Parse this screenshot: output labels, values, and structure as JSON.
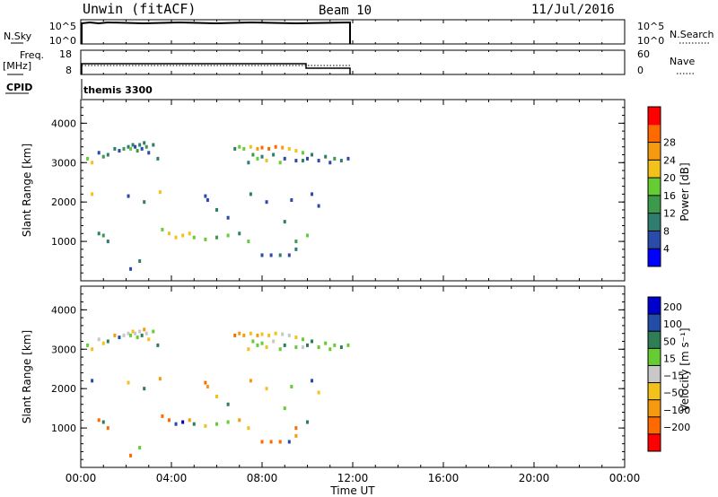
{
  "header": {
    "title": "Unwin (fitACF)",
    "beam": "Beam 10",
    "date": "11/Jul/2016"
  },
  "nsky_panel": {
    "label": "N.Sky",
    "tick_top": "10^5",
    "tick_bottom": "10^0",
    "right_tick_top": "10^5",
    "right_tick_bottom": "10^0",
    "right_label": "N.Search"
  },
  "freq_panel": {
    "label_line1": "Freq.",
    "label_line2": "[MHz]",
    "tick_top": "18",
    "tick_bottom": "8",
    "right_tick_top": "60",
    "right_tick_bottom": "0",
    "right_label": "Nave"
  },
  "cpid_panel": {
    "label": "CPID",
    "text": "themis 3300"
  },
  "x_axis": {
    "title": "Time UT",
    "ticks": [
      "00:00",
      "04:00",
      "08:00",
      "12:00",
      "16:00",
      "20:00",
      "00:00"
    ],
    "range_hours": [
      0,
      24
    ]
  },
  "power_panel": {
    "ylabel": "Slant Range [km]",
    "yticks": [
      "1000",
      "2000",
      "3000",
      "4000"
    ],
    "colorbar_label": "Power [dB]",
    "colorbar_ticks": [
      "4",
      "8",
      "12",
      "16",
      "20",
      "24",
      "28"
    ]
  },
  "velocity_panel": {
    "ylabel": "Slant Range [km]",
    "yticks": [
      "1000",
      "2000",
      "3000",
      "4000"
    ],
    "colorbar_label": "Velocity [m s⁻¹]",
    "colorbar_ticks": [
      "200",
      "100",
      "50",
      "15",
      "−15",
      "−50",
      "−100",
      "−200"
    ]
  },
  "colors": {
    "power_scale": [
      "#0000ff",
      "#2a4ba8",
      "#2e7d6e",
      "#3c9a4a",
      "#66cc33",
      "#f2c11a",
      "#f59a10",
      "#ff6a00",
      "#ff0000"
    ],
    "velocity_scale": [
      "#0000cc",
      "#234ba8",
      "#2e7d55",
      "#66cc33",
      "#c8c8c8",
      "#f2c11a",
      "#f59a10",
      "#ff6a00",
      "#ff0000"
    ]
  },
  "chart_data": [
    {
      "type": "line",
      "title": "N.Sky / N.Search",
      "x_hours": [
        0.0,
        12.0
      ],
      "series": [
        {
          "name": "N.Sky",
          "values_log10": [
            5,
            5
          ]
        },
        {
          "name": "N.Search",
          "values_log10": [
            5,
            5
          ]
        }
      ],
      "xlim": [
        0,
        24
      ]
    },
    {
      "type": "line",
      "title": "Freq. / Nave",
      "x_hours": [
        0.0,
        10.0,
        10.0,
        12.0
      ],
      "series": [
        {
          "name": "Freq. [MHz]",
          "values": [
            10.8,
            10.8,
            9.7,
            9.7
          ]
        },
        {
          "name": "Nave",
          "values": [
            30,
            30,
            30,
            30
          ]
        }
      ],
      "xlim": [
        0,
        24
      ]
    },
    {
      "type": "scatter",
      "title": "Power [dB]",
      "xlabel": "Time UT",
      "ylabel": "Slant Range [km]",
      "xlim": [
        0,
        24
      ],
      "ylim": [
        0,
        4600
      ],
      "points": [
        [
          0.3,
          3100,
          18
        ],
        [
          0.5,
          3000,
          20
        ],
        [
          0.8,
          3250,
          8
        ],
        [
          1.0,
          3150,
          14
        ],
        [
          1.2,
          3200,
          10
        ],
        [
          1.5,
          3350,
          12
        ],
        [
          1.7,
          3300,
          6
        ],
        [
          1.9,
          3350,
          14
        ],
        [
          2.1,
          3400,
          10
        ],
        [
          2.2,
          3350,
          16
        ],
        [
          2.3,
          3450,
          12
        ],
        [
          2.4,
          3400,
          8
        ],
        [
          2.5,
          3300,
          14
        ],
        [
          2.6,
          3450,
          10
        ],
        [
          2.7,
          3350,
          6
        ],
        [
          2.8,
          3500,
          12
        ],
        [
          2.9,
          3400,
          14
        ],
        [
          3.0,
          3250,
          8
        ],
        [
          3.2,
          3450,
          10
        ],
        [
          3.4,
          3100,
          12
        ],
        [
          0.5,
          2200,
          20
        ],
        [
          2.1,
          2150,
          8
        ],
        [
          2.8,
          2000,
          10
        ],
        [
          3.5,
          2250,
          20
        ],
        [
          3.6,
          1300,
          18
        ],
        [
          3.9,
          1200,
          20
        ],
        [
          4.2,
          1100,
          20
        ],
        [
          4.5,
          1150,
          22
        ],
        [
          4.8,
          1200,
          20
        ],
        [
          5.0,
          1100,
          18
        ],
        [
          5.5,
          1050,
          16
        ],
        [
          6.0,
          1100,
          14
        ],
        [
          6.5,
          1150,
          16
        ],
        [
          7.0,
          1200,
          12
        ],
        [
          7.4,
          1000,
          18
        ],
        [
          0.8,
          1200,
          10
        ],
        [
          1.0,
          1150,
          14
        ],
        [
          1.2,
          1000,
          12
        ],
        [
          2.2,
          300,
          8
        ],
        [
          2.6,
          500,
          12
        ],
        [
          5.5,
          2150,
          8
        ],
        [
          5.6,
          2050,
          6
        ],
        [
          6.0,
          1800,
          10
        ],
        [
          6.5,
          1600,
          8
        ],
        [
          7.5,
          2200,
          10
        ],
        [
          8.2,
          2000,
          8
        ],
        [
          9.3,
          2050,
          6
        ],
        [
          10.2,
          2200,
          8
        ],
        [
          10.5,
          1900,
          6
        ],
        [
          9.0,
          1500,
          10
        ],
        [
          9.5,
          1000,
          14
        ],
        [
          10.0,
          1150,
          16
        ],
        [
          8.0,
          650,
          6
        ],
        [
          8.4,
          650,
          8
        ],
        [
          8.8,
          650,
          10
        ],
        [
          9.2,
          650,
          6
        ],
        [
          9.5,
          800,
          12
        ],
        [
          6.8,
          3350,
          12
        ],
        [
          7.0,
          3400,
          16
        ],
        [
          7.2,
          3350,
          18
        ],
        [
          7.5,
          3400,
          22
        ],
        [
          7.8,
          3350,
          24
        ],
        [
          8.0,
          3380,
          26
        ],
        [
          8.3,
          3350,
          28
        ],
        [
          8.6,
          3400,
          26
        ],
        [
          8.9,
          3380,
          24
        ],
        [
          9.2,
          3350,
          22
        ],
        [
          9.5,
          3300,
          20
        ],
        [
          9.8,
          3250,
          18
        ],
        [
          7.6,
          3200,
          14
        ],
        [
          8.0,
          3150,
          12
        ],
        [
          8.5,
          3200,
          10
        ],
        [
          9.0,
          3100,
          8
        ],
        [
          9.5,
          3050,
          6
        ],
        [
          10.0,
          3100,
          8
        ],
        [
          10.5,
          3050,
          6
        ],
        [
          11.0,
          3000,
          8
        ],
        [
          11.5,
          3050,
          10
        ],
        [
          11.8,
          3100,
          6
        ],
        [
          10.2,
          3200,
          12
        ],
        [
          10.8,
          3150,
          10
        ],
        [
          11.2,
          3100,
          14
        ],
        [
          9.8,
          3050,
          12
        ],
        [
          8.8,
          3000,
          16
        ],
        [
          8.2,
          3050,
          20
        ],
        [
          7.8,
          3100,
          18
        ],
        [
          7.4,
          3000,
          10
        ]
      ]
    },
    {
      "type": "scatter",
      "title": "Velocity [m s⁻¹]",
      "xlabel": "Time UT",
      "ylabel": "Slant Range [km]",
      "xlim": [
        0,
        24
      ],
      "ylim": [
        0,
        4600
      ],
      "points": [
        [
          0.3,
          3100,
          30
        ],
        [
          0.5,
          3000,
          -40
        ],
        [
          0.8,
          3250,
          10
        ],
        [
          1.0,
          3150,
          -20
        ],
        [
          1.2,
          3200,
          60
        ],
        [
          1.5,
          3350,
          -60
        ],
        [
          1.7,
          3300,
          120
        ],
        [
          1.9,
          3350,
          5
        ],
        [
          2.1,
          3400,
          -5
        ],
        [
          2.2,
          3350,
          20
        ],
        [
          2.3,
          3450,
          -30
        ],
        [
          2.4,
          3400,
          0
        ],
        [
          2.5,
          3300,
          40
        ],
        [
          2.6,
          3450,
          -10
        ],
        [
          2.7,
          3350,
          80
        ],
        [
          2.8,
          3500,
          -80
        ],
        [
          2.9,
          3400,
          10
        ],
        [
          3.0,
          3250,
          -20
        ],
        [
          3.2,
          3450,
          30
        ],
        [
          3.4,
          3100,
          60
        ],
        [
          0.5,
          2200,
          150
        ],
        [
          2.1,
          2150,
          -40
        ],
        [
          2.8,
          2000,
          60
        ],
        [
          3.5,
          2250,
          -60
        ],
        [
          3.6,
          1300,
          -120
        ],
        [
          3.9,
          1200,
          -150
        ],
        [
          4.2,
          1100,
          150
        ],
        [
          4.5,
          1150,
          200
        ],
        [
          4.8,
          1200,
          -60
        ],
        [
          5.0,
          1100,
          80
        ],
        [
          5.5,
          1050,
          -40
        ],
        [
          6.0,
          1100,
          40
        ],
        [
          6.5,
          1150,
          20
        ],
        [
          7.0,
          1200,
          -100
        ],
        [
          7.4,
          1000,
          -30
        ],
        [
          0.8,
          1200,
          -150
        ],
        [
          1.0,
          1150,
          60
        ],
        [
          1.2,
          1000,
          -180
        ],
        [
          2.2,
          300,
          -200
        ],
        [
          2.6,
          500,
          30
        ],
        [
          5.5,
          2150,
          -160
        ],
        [
          5.6,
          2050,
          -60
        ],
        [
          6.0,
          1800,
          -40
        ],
        [
          6.5,
          1600,
          80
        ],
        [
          7.5,
          2200,
          -80
        ],
        [
          8.2,
          2000,
          -50
        ],
        [
          9.3,
          2050,
          30
        ],
        [
          10.2,
          2200,
          120
        ],
        [
          10.5,
          1900,
          -30
        ],
        [
          9.0,
          1500,
          40
        ],
        [
          9.5,
          1000,
          -120
        ],
        [
          10.0,
          1150,
          90
        ],
        [
          8.0,
          650,
          -200
        ],
        [
          8.4,
          650,
          -120
        ],
        [
          8.8,
          650,
          -180
        ],
        [
          9.2,
          650,
          150
        ],
        [
          9.5,
          800,
          -90
        ],
        [
          6.8,
          3350,
          -150
        ],
        [
          7.0,
          3400,
          -80
        ],
        [
          7.2,
          3350,
          -60
        ],
        [
          7.5,
          3400,
          -40
        ],
        [
          7.8,
          3350,
          -60
        ],
        [
          8.0,
          3380,
          -30
        ],
        [
          8.3,
          3350,
          -20
        ],
        [
          8.6,
          3400,
          -50
        ],
        [
          8.9,
          3380,
          0
        ],
        [
          9.2,
          3350,
          10
        ],
        [
          9.5,
          3300,
          -30
        ],
        [
          9.8,
          3250,
          20
        ],
        [
          7.6,
          3200,
          30
        ],
        [
          8.0,
          3150,
          40
        ],
        [
          8.5,
          3200,
          -10
        ],
        [
          9.0,
          3100,
          60
        ],
        [
          9.5,
          3050,
          40
        ],
        [
          10.0,
          3100,
          50
        ],
        [
          10.5,
          3050,
          30
        ],
        [
          11.0,
          3000,
          40
        ],
        [
          11.5,
          3050,
          60
        ],
        [
          11.8,
          3100,
          20
        ],
        [
          10.2,
          3200,
          80
        ],
        [
          10.8,
          3150,
          30
        ],
        [
          11.2,
          3100,
          40
        ],
        [
          9.8,
          3050,
          10
        ],
        [
          8.8,
          3000,
          20
        ],
        [
          8.2,
          3050,
          -20
        ],
        [
          7.8,
          3100,
          30
        ],
        [
          7.4,
          3000,
          -40
        ]
      ]
    }
  ]
}
